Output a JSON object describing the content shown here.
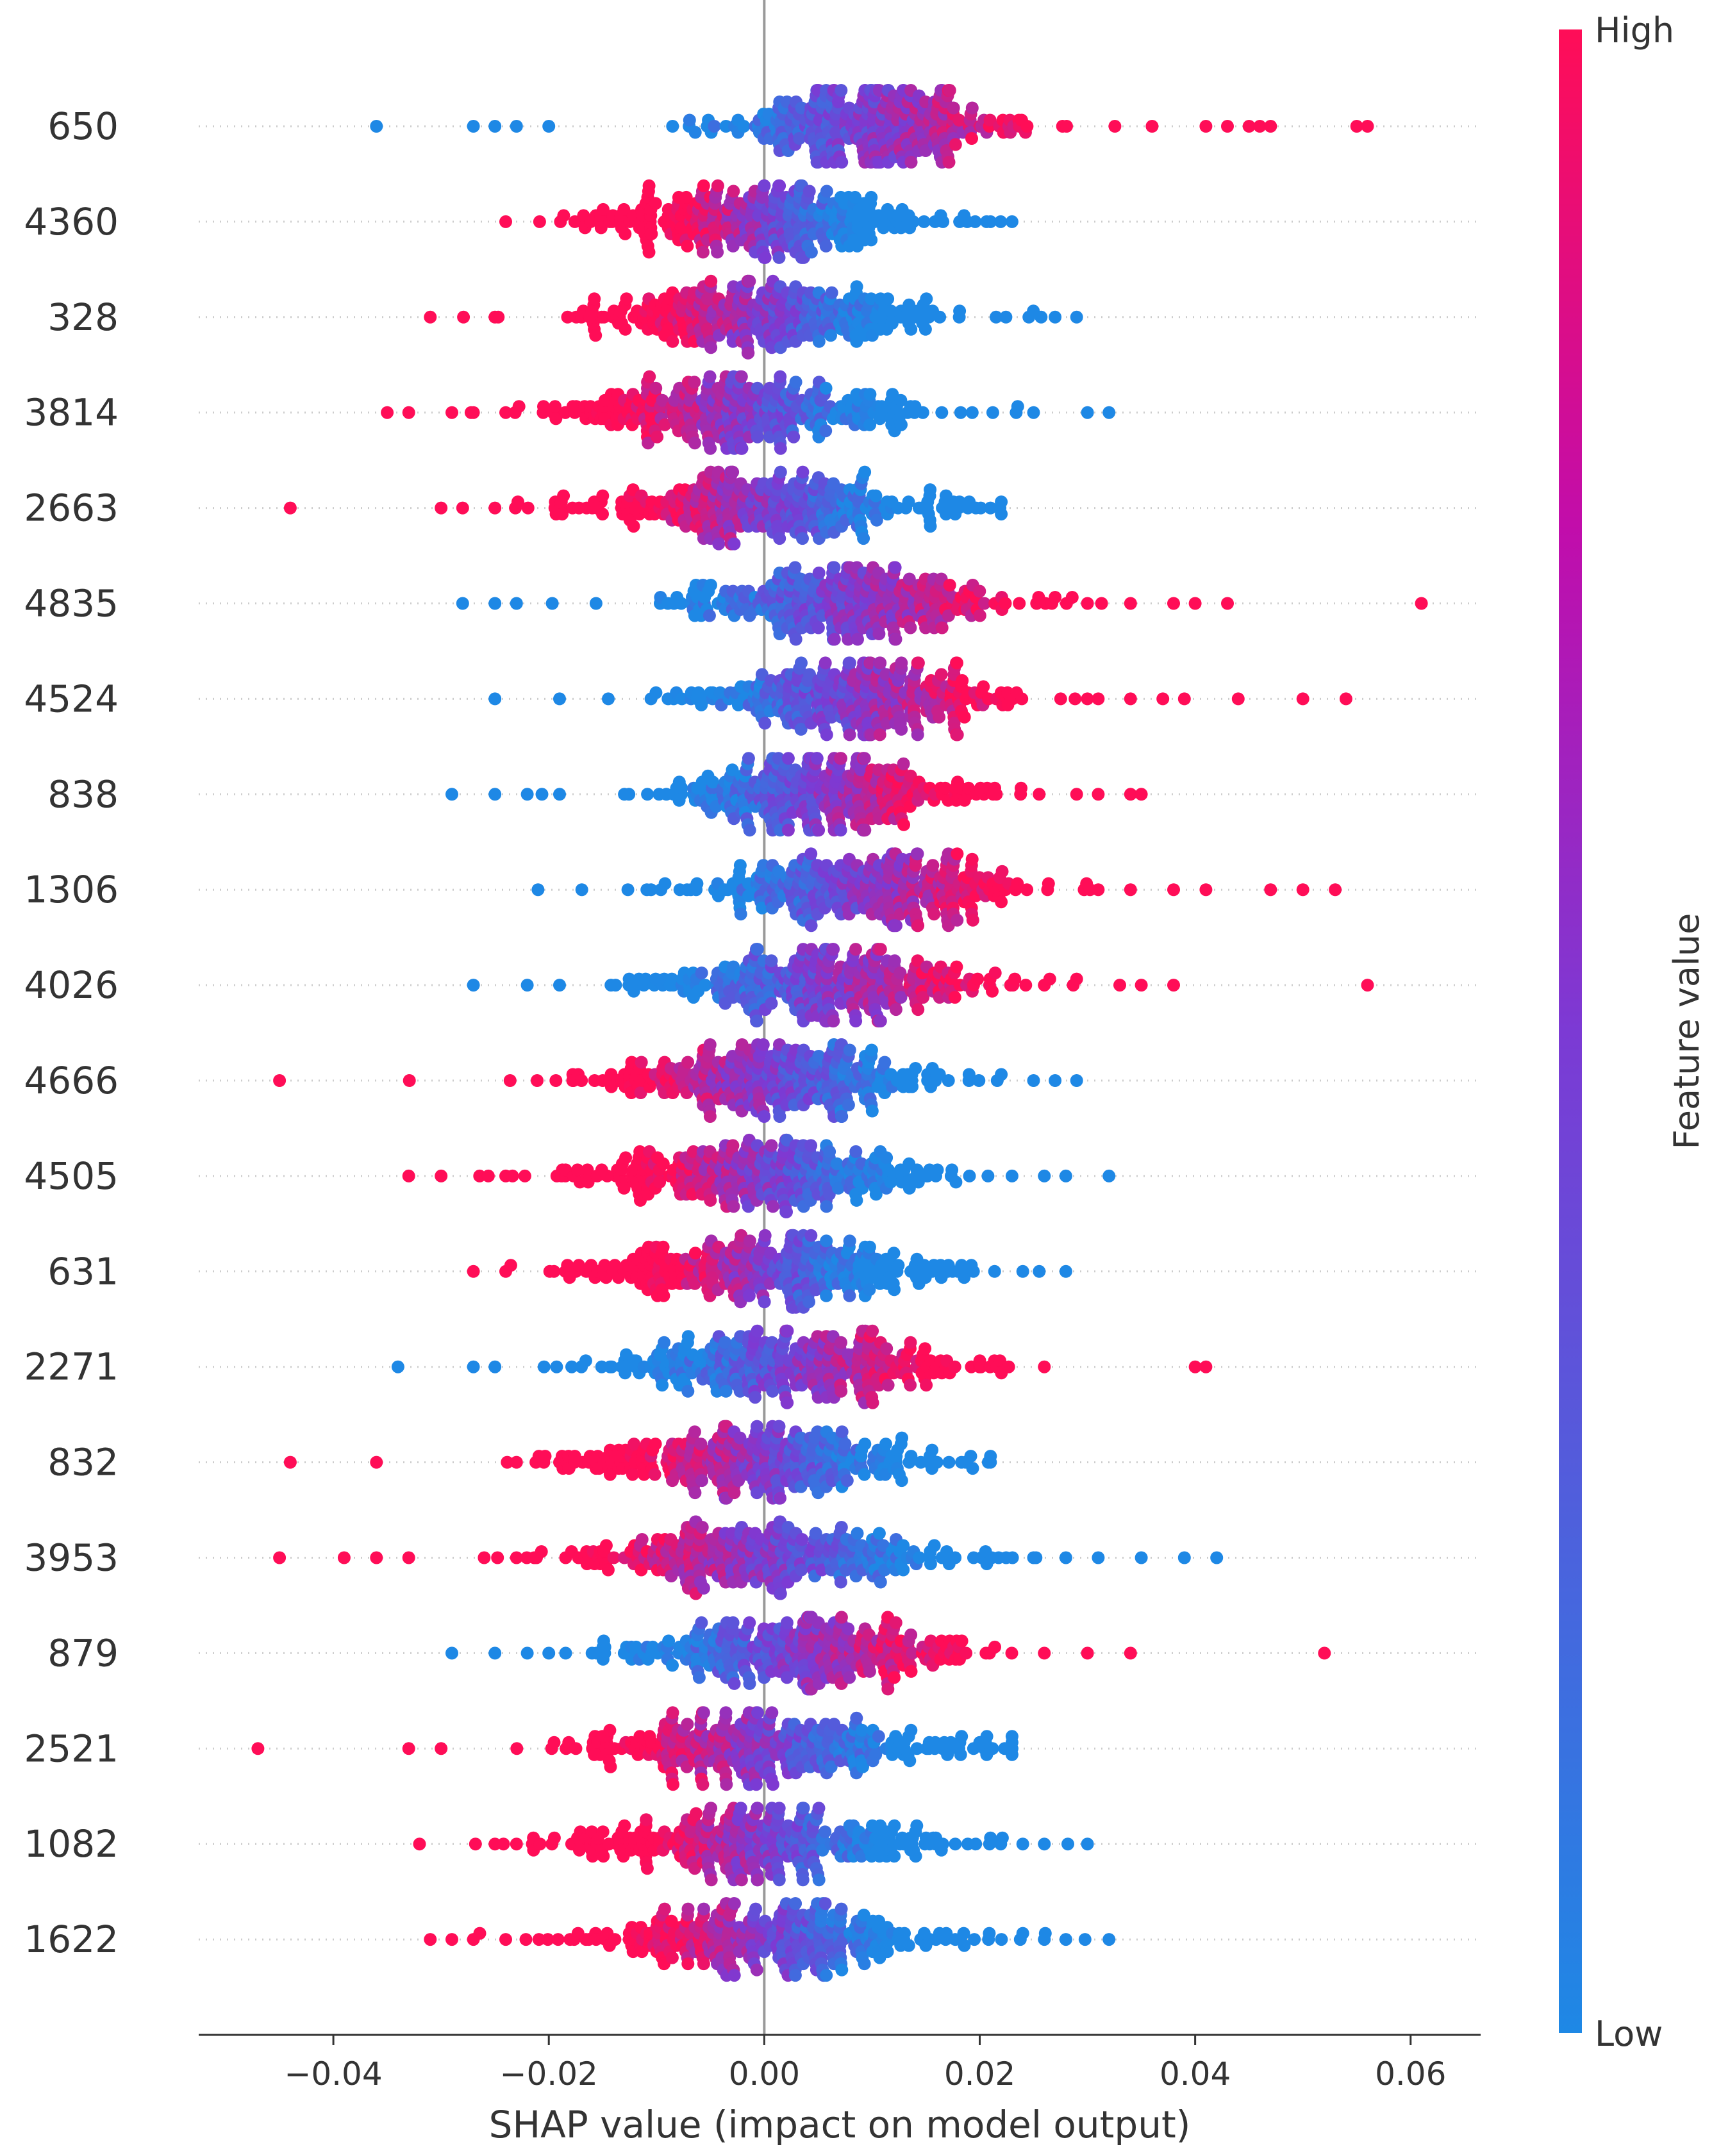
{
  "chart_data": {
    "type": "scatter",
    "subtype": "shap-beeswarm",
    "title": "",
    "xlabel": "SHAP value (impact on model output)",
    "ylabel": "",
    "xlim": [
      -0.0525,
      0.0665
    ],
    "xticks": [
      -0.04,
      -0.02,
      0.0,
      0.02,
      0.04,
      0.06
    ],
    "xtick_labels": [
      "−0.04",
      "−0.02",
      "0.00",
      "0.02",
      "0.04",
      "0.06"
    ],
    "zero_line": 0.0,
    "colorbar": {
      "label": "Feature value",
      "high_label": "High",
      "low_label": "Low",
      "high_color": "#ff0d57",
      "low_color": "#1e88e5"
    },
    "features": [
      {
        "name": "650",
        "min": -0.036,
        "max": 0.057,
        "spread": 0.007,
        "high_on": "right",
        "skew": 0.01,
        "outliers": [
          -0.036,
          -0.027,
          -0.025,
          -0.023,
          -0.02,
          0.036,
          0.041,
          0.043,
          0.045,
          0.046,
          0.047,
          0.055,
          0.056
        ]
      },
      {
        "name": "4360",
        "min": -0.024,
        "max": 0.023,
        "spread": 0.008,
        "high_on": "left",
        "skew": 0.0,
        "outliers": [
          -0.024,
          0.021,
          0.023
        ]
      },
      {
        "name": "328",
        "min": -0.031,
        "max": 0.029,
        "spread": 0.0085,
        "high_on": "left",
        "skew": 0.0,
        "outliers": [
          -0.031,
          -0.025,
          0.027,
          0.029
        ]
      },
      {
        "name": "3814",
        "min": -0.035,
        "max": 0.032,
        "spread": 0.009,
        "high_on": "left",
        "skew": -0.002,
        "outliers": [
          -0.035,
          -0.033,
          -0.029,
          -0.027,
          -0.024,
          0.025,
          0.03,
          0.032
        ]
      },
      {
        "name": "2663",
        "min": -0.044,
        "max": 0.022,
        "spread": 0.0085,
        "high_on": "left",
        "skew": 0.0,
        "outliers": [
          -0.044,
          -0.03,
          -0.028,
          -0.025,
          0.021
        ]
      },
      {
        "name": "4835",
        "min": -0.028,
        "max": 0.061,
        "spread": 0.008,
        "high_on": "right",
        "skew": 0.008,
        "outliers": [
          -0.028,
          -0.025,
          -0.023,
          0.027,
          0.03,
          0.034,
          0.038,
          0.04,
          0.043,
          0.061
        ]
      },
      {
        "name": "4524",
        "min": -0.025,
        "max": 0.054,
        "spread": 0.008,
        "high_on": "right",
        "skew": 0.008,
        "outliers": [
          -0.025,
          -0.019,
          0.031,
          0.034,
          0.037,
          0.039,
          0.044,
          0.05,
          0.054
        ]
      },
      {
        "name": "838",
        "min": -0.029,
        "max": 0.035,
        "spread": 0.008,
        "high_on": "right",
        "skew": 0.005,
        "outliers": [
          -0.029,
          -0.025,
          -0.022,
          -0.019,
          0.029,
          0.031,
          0.034,
          0.035
        ]
      },
      {
        "name": "1306",
        "min": -0.021,
        "max": 0.053,
        "spread": 0.008,
        "high_on": "right",
        "skew": 0.009,
        "outliers": [
          -0.021,
          0.031,
          0.034,
          0.038,
          0.041,
          0.047,
          0.05,
          0.053
        ]
      },
      {
        "name": "4026",
        "min": -0.027,
        "max": 0.056,
        "spread": 0.008,
        "high_on": "right",
        "skew": 0.006,
        "outliers": [
          -0.027,
          -0.022,
          -0.019,
          0.026,
          0.029,
          0.033,
          0.035,
          0.038,
          0.056
        ]
      },
      {
        "name": "4666",
        "min": -0.045,
        "max": 0.029,
        "spread": 0.0085,
        "high_on": "left",
        "skew": 0.0,
        "outliers": [
          -0.045,
          0.019,
          0.022,
          0.025,
          0.027,
          0.029
        ]
      },
      {
        "name": "4505",
        "min": -0.033,
        "max": 0.032,
        "spread": 0.0085,
        "high_on": "left",
        "skew": 0.0,
        "outliers": [
          -0.033,
          -0.03,
          -0.024,
          0.023,
          0.026,
          0.028,
          0.032
        ]
      },
      {
        "name": "631",
        "min": -0.027,
        "max": 0.028,
        "spread": 0.0085,
        "high_on": "left",
        "skew": 0.0,
        "outliers": [
          -0.027,
          -0.024,
          0.024,
          0.028
        ]
      },
      {
        "name": "2271",
        "min": -0.034,
        "max": 0.041,
        "spread": 0.008,
        "high_on": "right",
        "skew": 0.003,
        "outliers": [
          -0.034,
          -0.027,
          -0.025,
          0.026,
          0.04,
          0.041
        ]
      },
      {
        "name": "832",
        "min": -0.044,
        "max": 0.021,
        "spread": 0.0085,
        "high_on": "left",
        "skew": 0.0,
        "outliers": [
          -0.044,
          -0.036,
          -0.023,
          -0.019,
          0.021
        ]
      },
      {
        "name": "3953",
        "min": -0.045,
        "max": 0.042,
        "spread": 0.009,
        "high_on": "left",
        "skew": 0.0,
        "outliers": [
          -0.045,
          -0.039,
          -0.036,
          -0.033,
          -0.026,
          -0.023,
          0.025,
          0.028,
          0.031,
          0.035,
          0.039,
          0.042
        ]
      },
      {
        "name": "879",
        "min": -0.029,
        "max": 0.052,
        "spread": 0.0085,
        "high_on": "right",
        "skew": 0.003,
        "outliers": [
          -0.029,
          -0.025,
          -0.022,
          -0.02,
          0.026,
          0.03,
          0.034,
          0.052
        ]
      },
      {
        "name": "2521",
        "min": -0.047,
        "max": 0.023,
        "spread": 0.009,
        "high_on": "left",
        "skew": 0.0,
        "outliers": [
          -0.047,
          -0.033,
          -0.03,
          0.02,
          0.023
        ]
      },
      {
        "name": "1082",
        "min": -0.032,
        "max": 0.03,
        "spread": 0.009,
        "high_on": "left",
        "skew": 0.0,
        "outliers": [
          -0.032,
          -0.025,
          -0.023,
          0.021,
          0.024,
          0.026,
          0.03
        ]
      },
      {
        "name": "1622",
        "min": -0.031,
        "max": 0.032,
        "spread": 0.009,
        "high_on": "left",
        "skew": 0.0,
        "outliers": [
          -0.031,
          -0.029,
          -0.027,
          -0.024,
          0.024,
          0.026,
          0.028,
          0.032
        ]
      }
    ]
  }
}
